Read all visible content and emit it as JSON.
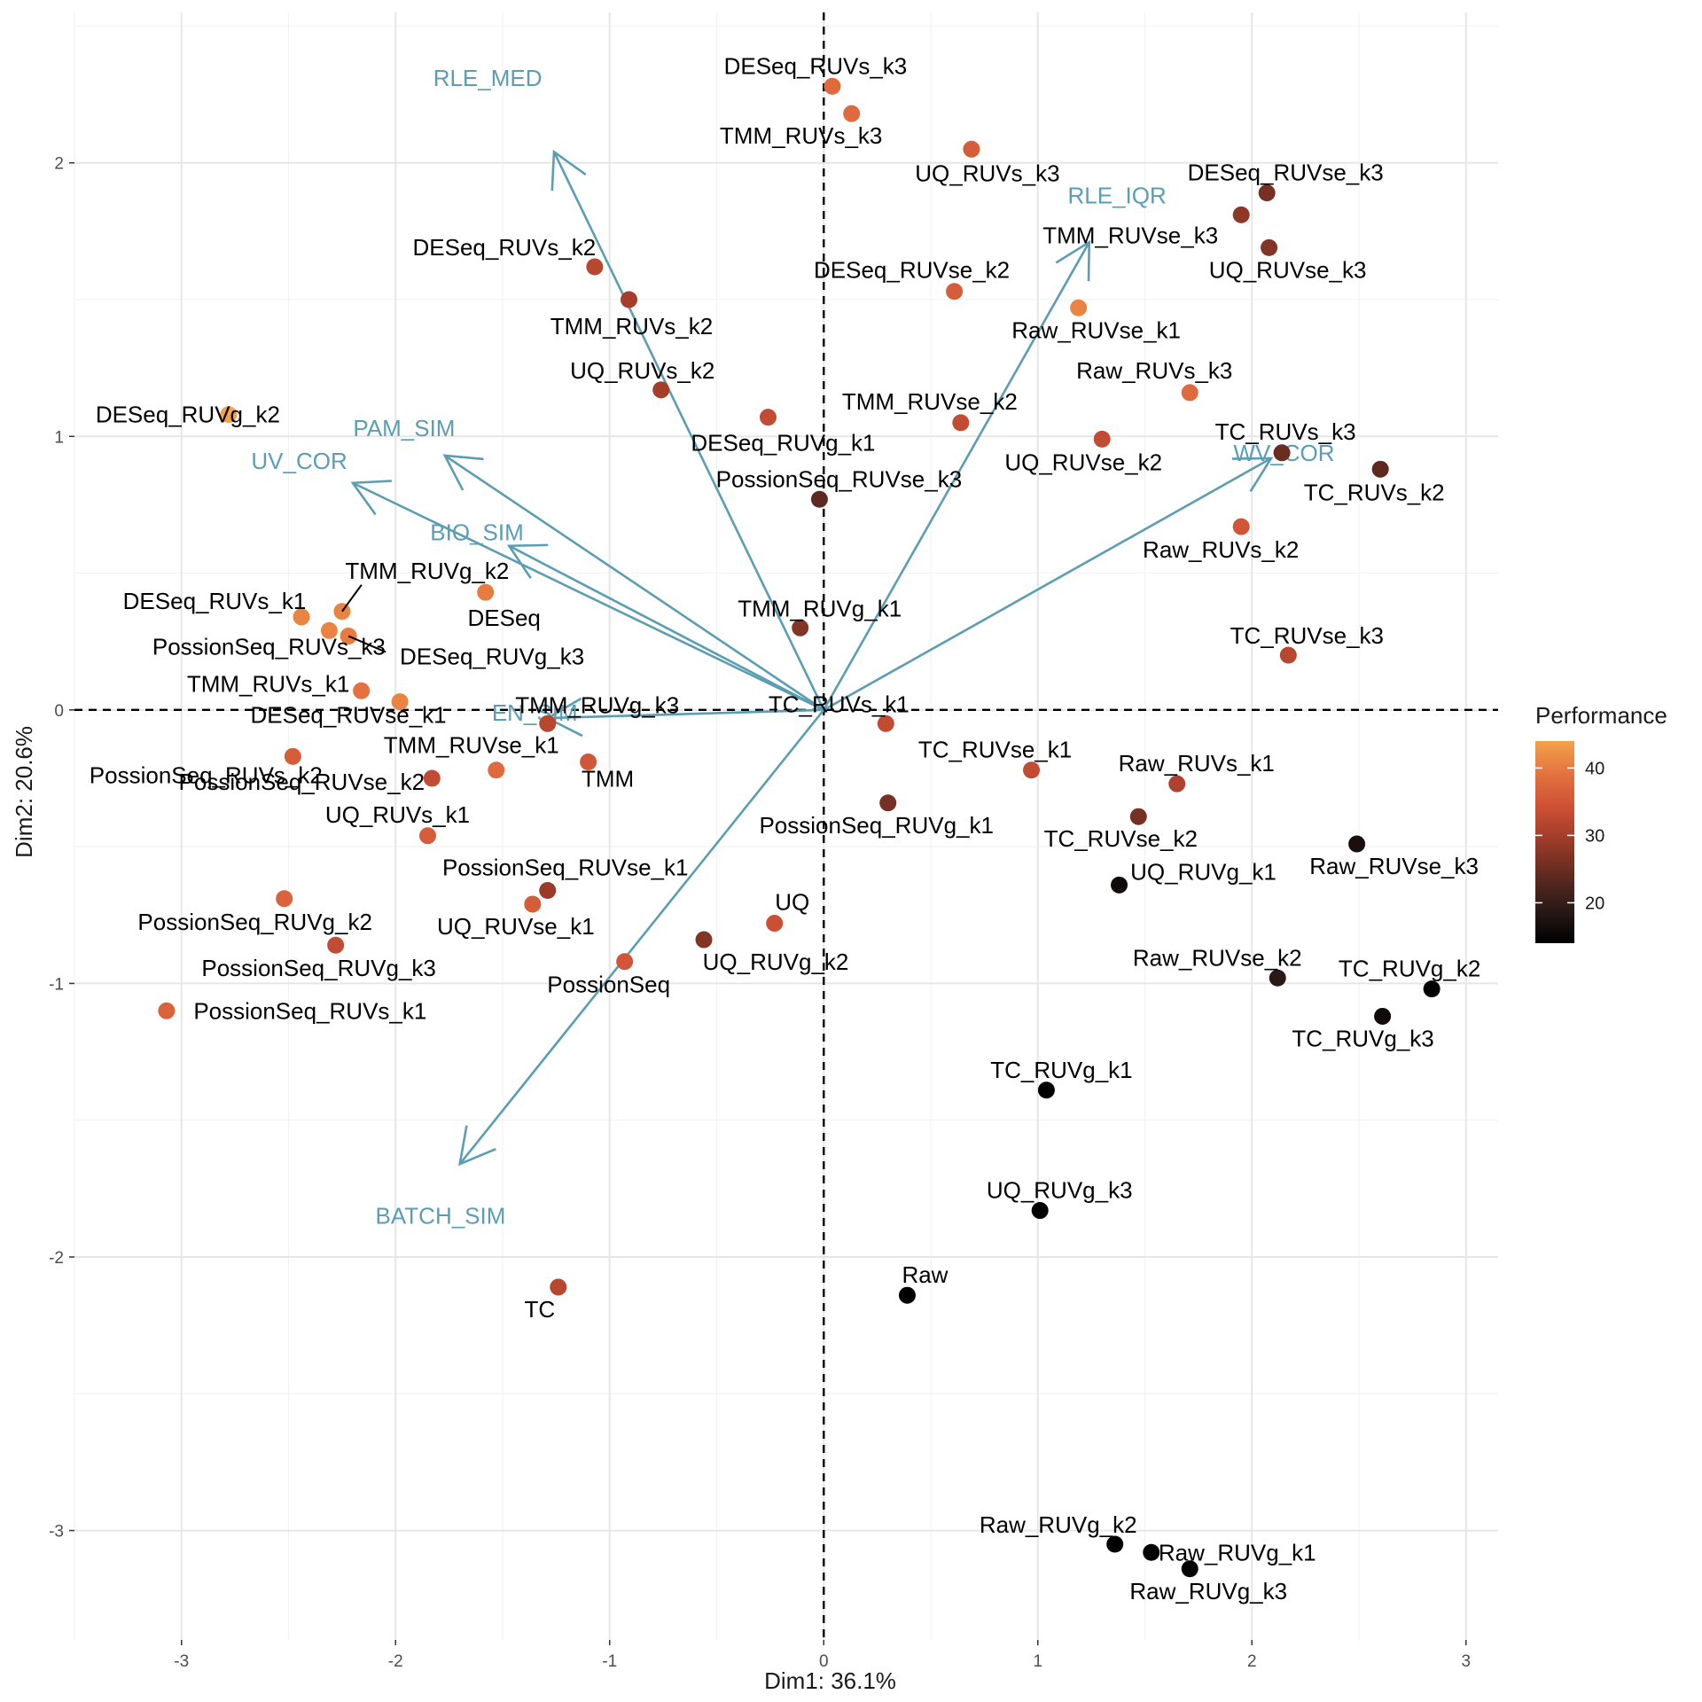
{
  "chart_data": {
    "type": "scatter",
    "subtype": "pca-biplot",
    "xlabel": "Dim1: 36.1%",
    "ylabel": "Dim2: 20.6%",
    "xlim": [
      -3.5,
      3.15
    ],
    "ylim": [
      -3.4,
      2.55
    ],
    "x_ticks": [
      -3,
      -2,
      -1,
      0,
      1,
      2,
      3
    ],
    "y_ticks": [
      -3,
      -2,
      -1,
      0,
      1,
      2
    ],
    "grid": true,
    "reference_lines": {
      "x": 0,
      "y": 0,
      "style": "dashed"
    },
    "legend": {
      "title": "Performance",
      "placement": "right",
      "type": "colorbar",
      "min": 14,
      "max": 44,
      "ticks": [
        20,
        30,
        40
      ],
      "colors": [
        "#000000",
        "#2a1a17",
        "#5e2a20",
        "#9a3a29",
        "#cc4f35",
        "#e4713f",
        "#f4a14a"
      ]
    },
    "arrow_color": "#5b9db3",
    "variables": [
      {
        "name": "RLE_MED",
        "x": -1.26,
        "y": 2.04
      },
      {
        "name": "RLE_IQR",
        "x": 1.24,
        "y": 1.71
      },
      {
        "name": "PAM_SIM",
        "x": -1.77,
        "y": 0.93
      },
      {
        "name": "UV_COR",
        "x": -2.2,
        "y": 0.83
      },
      {
        "name": "BIO_SIM",
        "x": -1.47,
        "y": 0.6
      },
      {
        "name": "EN_SIM",
        "x": -1.29,
        "y": -0.03
      },
      {
        "name": "BATCH_SIM",
        "x": -1.7,
        "y": -1.66
      },
      {
        "name": "WV_COR",
        "x": 2.09,
        "y": 0.92
      }
    ],
    "points": [
      {
        "name": "DESeq_RUVs_k3",
        "x": 0.04,
        "y": 2.28,
        "performance": 38
      },
      {
        "name": "TMM_RUVs_k3",
        "x": 0.13,
        "y": 2.18,
        "performance": 38
      },
      {
        "name": "UQ_RUVs_k3",
        "x": 0.69,
        "y": 2.05,
        "performance": 36
      },
      {
        "name": "DESeq_RUVse_k3",
        "x": 2.07,
        "y": 1.89,
        "performance": 26
      },
      {
        "name": "TMM_RUVse_k3",
        "x": 1.95,
        "y": 1.81,
        "performance": 28
      },
      {
        "name": "UQ_RUVse_k3",
        "x": 2.08,
        "y": 1.69,
        "performance": 27
      },
      {
        "name": "DESeq_RUVs_k2",
        "x": -1.07,
        "y": 1.62,
        "performance": 32
      },
      {
        "name": "TMM_RUVs_k2",
        "x": -0.91,
        "y": 1.5,
        "performance": 30
      },
      {
        "name": "DESeq_RUVse_k2",
        "x": 0.61,
        "y": 1.53,
        "performance": 36
      },
      {
        "name": "Raw_RUVse_k1",
        "x": 1.19,
        "y": 1.47,
        "performance": 41
      },
      {
        "name": "UQ_RUVs_k2",
        "x": -0.76,
        "y": 1.17,
        "performance": 30
      },
      {
        "name": "Raw_RUVs_k3",
        "x": 1.71,
        "y": 1.16,
        "performance": 38
      },
      {
        "name": "DESeq_RUVg_k2",
        "x": -2.78,
        "y": 1.08,
        "performance": 44
      },
      {
        "name": "DESeq_RUVg_k1",
        "x": -0.26,
        "y": 1.07,
        "performance": 33
      },
      {
        "name": "TMM_RUVse_k2",
        "x": 0.64,
        "y": 1.05,
        "performance": 33
      },
      {
        "name": "UQ_RUVse_k2",
        "x": 1.3,
        "y": 0.99,
        "performance": 33
      },
      {
        "name": "TC_RUVs_k3",
        "x": 2.14,
        "y": 0.94,
        "performance": 25
      },
      {
        "name": "TC_RUVs_k2",
        "x": 2.6,
        "y": 0.88,
        "performance": 24
      },
      {
        "name": "PossionSeq_RUVse_k3",
        "x": -0.02,
        "y": 0.77,
        "performance": 24
      },
      {
        "name": "Raw_RUVs_k2",
        "x": 1.95,
        "y": 0.67,
        "performance": 35
      },
      {
        "name": "DESeq",
        "x": -1.58,
        "y": 0.43,
        "performance": 40
      },
      {
        "name": "TMM_RUVg_k2",
        "x": -2.25,
        "y": 0.36,
        "performance": 41
      },
      {
        "name": "DESeq_RUVs_k1",
        "x": -2.44,
        "y": 0.34,
        "performance": 41
      },
      {
        "name": "PossionSeq_RUVs_k3",
        "x": -2.31,
        "y": 0.29,
        "performance": 41
      },
      {
        "name": "DESeq_RUVg_k3",
        "x": -2.22,
        "y": 0.27,
        "performance": 40
      },
      {
        "name": "TMM_RUVg_k1",
        "x": -0.11,
        "y": 0.3,
        "performance": 27
      },
      {
        "name": "TC_RUVse_k3",
        "x": 2.17,
        "y": 0.2,
        "performance": 32
      },
      {
        "name": "TMM_RUVs_k1",
        "x": -2.16,
        "y": 0.07,
        "performance": 39
      },
      {
        "name": "DESeq_RUVse_k1",
        "x": -1.98,
        "y": 0.03,
        "performance": 41
      },
      {
        "name": "TMM_RUVg_k3",
        "x": -1.29,
        "y": -0.05,
        "performance": 32
      },
      {
        "name": "TC_RUVs_k1",
        "x": 0.29,
        "y": -0.05,
        "performance": 33
      },
      {
        "name": "PossionSeq_RUVs_k2",
        "x": -2.48,
        "y": -0.17,
        "performance": 36
      },
      {
        "name": "TMM_RUVse_k1",
        "x": -1.53,
        "y": -0.22,
        "performance": 38
      },
      {
        "name": "TMM",
        "x": -1.1,
        "y": -0.19,
        "performance": 35
      },
      {
        "name": "PossionSeq_RUVse_k2",
        "x": -1.83,
        "y": -0.25,
        "performance": 33
      },
      {
        "name": "TC_RUVse_k1",
        "x": 0.97,
        "y": -0.22,
        "performance": 33
      },
      {
        "name": "Raw_RUVs_k1",
        "x": 1.65,
        "y": -0.27,
        "performance": 31
      },
      {
        "name": "PossionSeq_RUVg_k1",
        "x": 0.3,
        "y": -0.34,
        "performance": 26
      },
      {
        "name": "TC_RUVse_k2",
        "x": 1.47,
        "y": -0.39,
        "performance": 26
      },
      {
        "name": "UQ_RUVs_k1",
        "x": -1.85,
        "y": -0.46,
        "performance": 36
      },
      {
        "name": "Raw_RUVse_k3",
        "x": 2.49,
        "y": -0.49,
        "performance": 17
      },
      {
        "name": "UQ_RUVg_k1",
        "x": 1.38,
        "y": -0.64,
        "performance": 16
      },
      {
        "name": "PossionSeq_RUVse_k1",
        "x": -1.29,
        "y": -0.66,
        "performance": 29
      },
      {
        "name": "PossionSeq_RUVg_k2",
        "x": -2.52,
        "y": -0.69,
        "performance": 37
      },
      {
        "name": "UQ_RUVse_k1",
        "x": -1.36,
        "y": -0.71,
        "performance": 36
      },
      {
        "name": "UQ",
        "x": -0.23,
        "y": -0.78,
        "performance": 34
      },
      {
        "name": "UQ_RUVg_k2",
        "x": -0.56,
        "y": -0.84,
        "performance": 27
      },
      {
        "name": "PossionSeq_RUVg_k3",
        "x": -2.28,
        "y": -0.86,
        "performance": 33
      },
      {
        "name": "PossionSeq",
        "x": -0.93,
        "y": -0.92,
        "performance": 35
      },
      {
        "name": "Raw_RUVse_k2",
        "x": 2.12,
        "y": -0.98,
        "performance": 19
      },
      {
        "name": "TC_RUVg_k2",
        "x": 2.84,
        "y": -1.02,
        "performance": 14
      },
      {
        "name": "PossionSeq_RUVs_k1",
        "x": -3.07,
        "y": -1.1,
        "performance": 37
      },
      {
        "name": "TC_RUVg_k3",
        "x": 2.61,
        "y": -1.12,
        "performance": 16
      },
      {
        "name": "TC_RUVg_k1",
        "x": 1.04,
        "y": -1.39,
        "performance": 14
      },
      {
        "name": "UQ_RUVg_k3",
        "x": 1.01,
        "y": -1.83,
        "performance": 14
      },
      {
        "name": "TC",
        "x": -1.24,
        "y": -2.11,
        "performance": 32
      },
      {
        "name": "Raw",
        "x": 0.39,
        "y": -2.14,
        "performance": 14
      },
      {
        "name": "Raw_RUVg_k2",
        "x": 1.36,
        "y": -3.05,
        "performance": 14
      },
      {
        "name": "Raw_RUVg_k1",
        "x": 1.53,
        "y": -3.08,
        "performance": 14
      },
      {
        "name": "Raw_RUVg_k3",
        "x": 1.71,
        "y": -3.14,
        "performance": 14
      }
    ]
  }
}
